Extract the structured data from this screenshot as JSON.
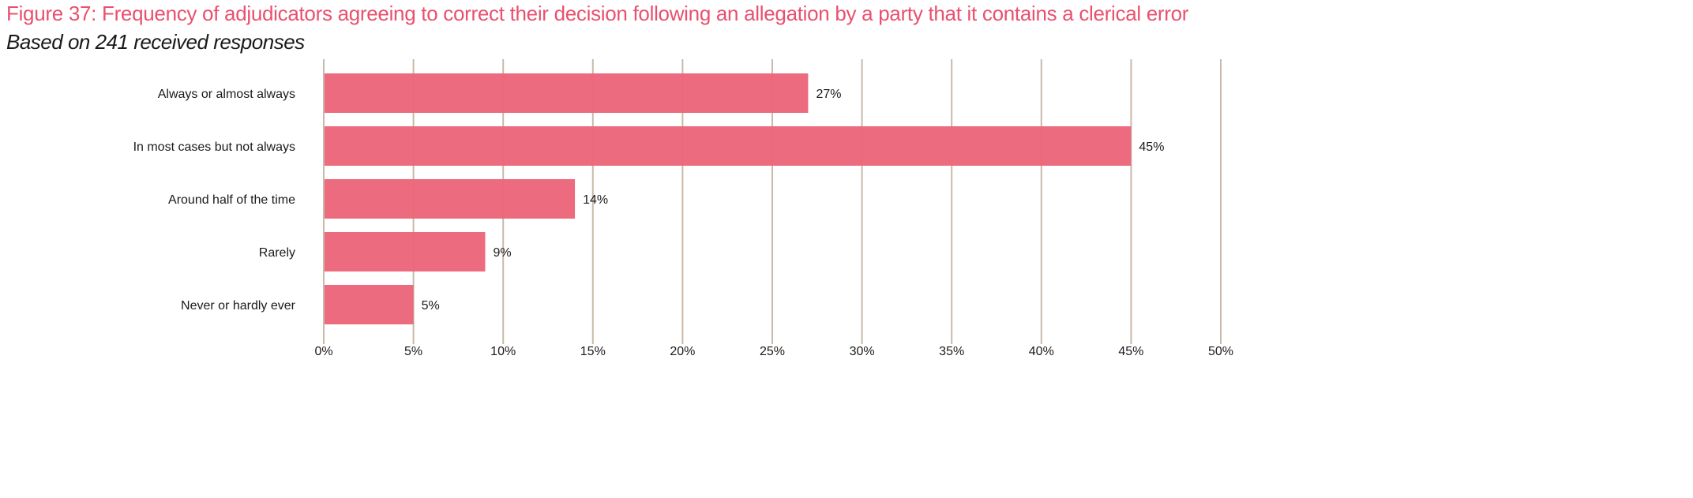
{
  "chart_data": {
    "type": "bar",
    "orientation": "horizontal",
    "title": "Figure 37: Frequency of adjudicators agreeing to correct their decision following an allegation by a party that it contains a clerical error",
    "subtitle": "Based on 241 received responses",
    "categories": [
      "Always or almost always",
      "In most cases but not always",
      "Around half of the time",
      "Rarely",
      "Never or hardly ever"
    ],
    "values": [
      27,
      45,
      14,
      9,
      5
    ],
    "data_labels": [
      "27%",
      "45%",
      "14%",
      "9%",
      "5%"
    ],
    "xlim": [
      0,
      50
    ],
    "xticks": [
      0,
      5,
      10,
      15,
      20,
      25,
      30,
      35,
      40,
      45,
      50
    ],
    "xtick_labels": [
      "0%",
      "5%",
      "10%",
      "15%",
      "20%",
      "25%",
      "30%",
      "35%",
      "40%",
      "45%",
      "50%"
    ],
    "xlabel": "",
    "ylabel": "",
    "grid": "vertical",
    "colors": {
      "bar": "#EC667A",
      "grid": "#C9B9AA",
      "title": "#E9506E"
    }
  }
}
